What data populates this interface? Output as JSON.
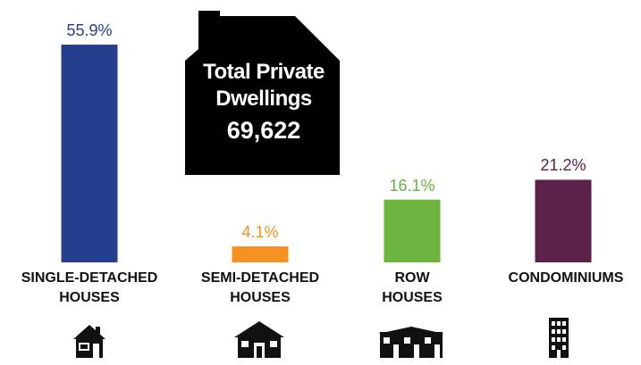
{
  "chart_data": {
    "type": "bar",
    "title": "Total Private Dwellings",
    "total": "69,622",
    "categories": [
      "SINGLE-DETACHED HOUSES",
      "SEMI-DETACHED HOUSES",
      "ROW HOUSES",
      "CONDOMINIUMS"
    ],
    "values": [
      55.9,
      4.1,
      16.1,
      21.2
    ],
    "value_labels": [
      "55.9%",
      "4.1%",
      "16.1%",
      "21.2%"
    ],
    "colors": [
      "#253f8e",
      "#f39122",
      "#6db33f",
      "#5b2148"
    ]
  }
}
